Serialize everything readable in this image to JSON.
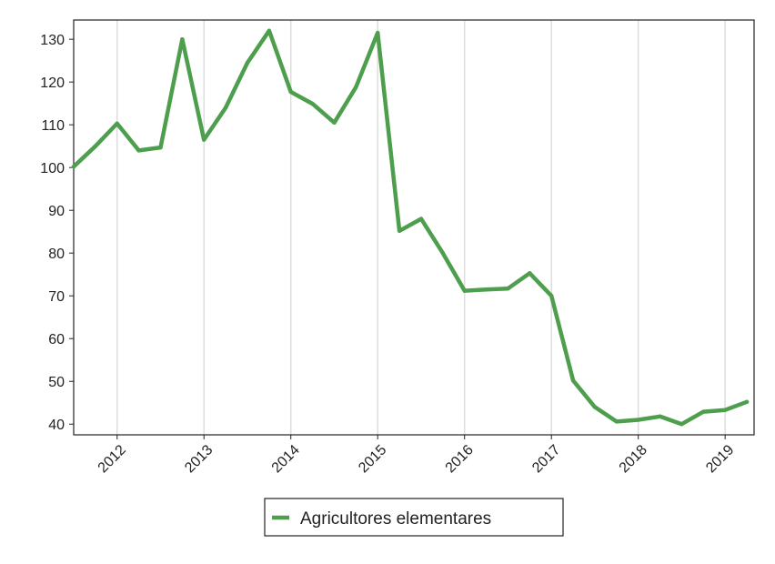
{
  "chart_data": {
    "type": "line",
    "title": "",
    "xlabel": "",
    "ylabel": "",
    "x": [
      "2011-07",
      "2011-10",
      "2012-01",
      "2012-04",
      "2012-07",
      "2012-10",
      "2013-01",
      "2013-04",
      "2013-07",
      "2013-10",
      "2014-01",
      "2014-04",
      "2014-07",
      "2014-10",
      "2015-01",
      "2015-04",
      "2015-07",
      "2015-10",
      "2016-01",
      "2016-04",
      "2016-07",
      "2016-10",
      "2017-01",
      "2017-04",
      "2017-07",
      "2017-10",
      "2018-01",
      "2018-04",
      "2018-07",
      "2018-10",
      "2019-01",
      "2019-04"
    ],
    "series": [
      {
        "name": "Agricultores elementares",
        "color": "#4d9e4d",
        "values": [
          100.2,
          105.0,
          110.3,
          104.0,
          104.7,
          130.0,
          106.5,
          114.0,
          124.5,
          132.0,
          117.7,
          114.9,
          110.5,
          118.8,
          131.5,
          85.2,
          88.0,
          80.0,
          71.2,
          71.5,
          71.7,
          75.3,
          70.0,
          50.2,
          44.0,
          40.6,
          41.0,
          41.8,
          40.0,
          42.9,
          43.3,
          45.2
        ]
      }
    ],
    "x_ticks": [
      "2012",
      "2013",
      "2014",
      "2015",
      "2016",
      "2017",
      "2018",
      "2019"
    ],
    "y_ticks": [
      40,
      50,
      60,
      70,
      80,
      90,
      100,
      110,
      120,
      130
    ],
    "ylim": [
      37.5,
      134.5
    ],
    "xlim": [
      "2011-07",
      "2019-05"
    ],
    "grid": "vertical",
    "legend_position": "bottom-center"
  },
  "legend": {
    "label": "Agricultores elementares"
  }
}
